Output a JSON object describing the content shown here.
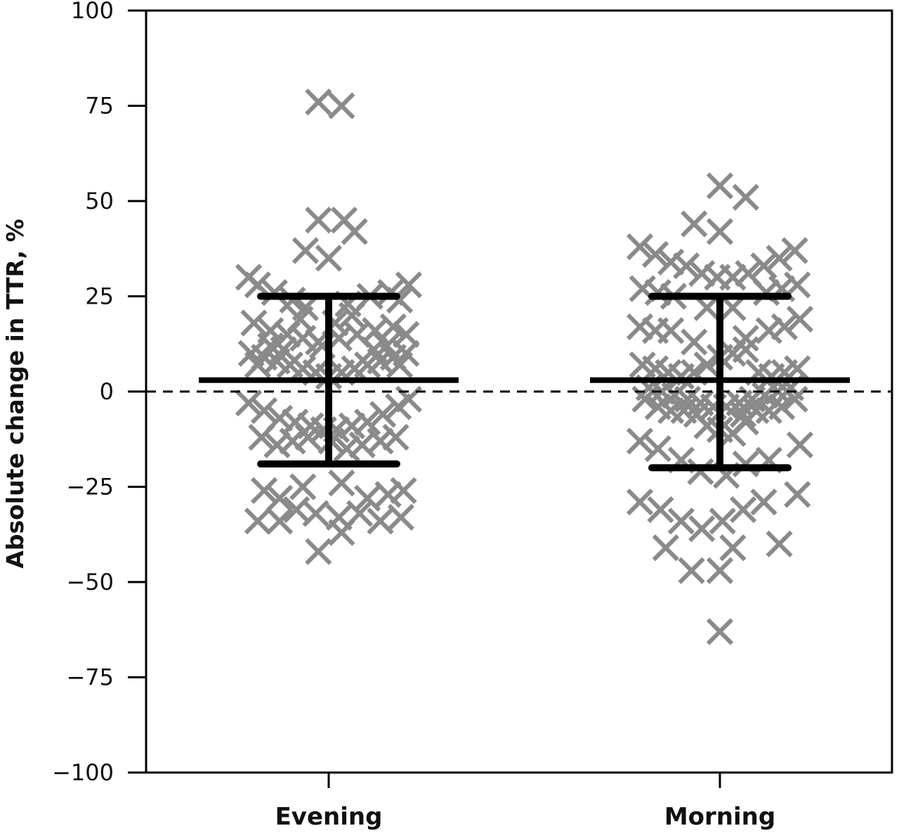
{
  "chart_data": {
    "type": "scatter",
    "subtype": "dot-plot-with-mean-and-sd",
    "title": "",
    "xlabel": "",
    "ylabel": "Absolute change in TTR, %",
    "ylim": [
      -100,
      100
    ],
    "yticks": [
      100,
      75,
      50,
      25,
      0,
      -25,
      -50,
      -75,
      -100
    ],
    "ytick_labels": [
      "100",
      "75",
      "50",
      "25",
      "0",
      "−25",
      "−50",
      "−75",
      "−100"
    ],
    "categories": [
      "Evening",
      "Morning"
    ],
    "reference_line": {
      "y": 0,
      "style": "dashed"
    },
    "grid": false,
    "legend": "none",
    "marker": "x",
    "colors": {
      "points": "#8a8a8a",
      "summary": "#000000",
      "axis": "#000000"
    },
    "groups": [
      {
        "name": "Evening",
        "mean": 3,
        "upper": 25,
        "lower": -19,
        "points": [
          [
            -0.62,
            30
          ],
          [
            -0.55,
            28
          ],
          [
            -0.42,
            26
          ],
          [
            -0.28,
            24
          ],
          [
            -0.18,
            22
          ],
          [
            0.15,
            23
          ],
          [
            0.32,
            25
          ],
          [
            0.48,
            26
          ],
          [
            0.62,
            28
          ],
          [
            0.55,
            24
          ],
          [
            -0.58,
            18
          ],
          [
            -0.45,
            16
          ],
          [
            -0.32,
            15
          ],
          [
            -0.2,
            14
          ],
          [
            -0.08,
            13
          ],
          [
            0.08,
            14
          ],
          [
            0.22,
            15
          ],
          [
            0.36,
            16
          ],
          [
            0.5,
            17
          ],
          [
            0.6,
            15
          ],
          [
            -0.6,
            10
          ],
          [
            -0.5,
            9
          ],
          [
            -0.4,
            8
          ],
          [
            -0.3,
            7
          ],
          [
            -0.2,
            6
          ],
          [
            -0.1,
            5
          ],
          [
            0.0,
            4
          ],
          [
            0.1,
            5
          ],
          [
            0.2,
            6
          ],
          [
            0.3,
            7
          ],
          [
            0.4,
            8
          ],
          [
            0.5,
            9
          ],
          [
            0.6,
            10
          ],
          [
            -0.55,
            7
          ],
          [
            -0.45,
            12
          ],
          [
            0.45,
            12
          ],
          [
            0.55,
            7
          ],
          [
            -0.35,
            11
          ],
          [
            0.35,
            11
          ],
          [
            -0.05,
            12
          ],
          [
            0.05,
            18
          ],
          [
            0.18,
            20
          ],
          [
            -0.22,
            19
          ],
          [
            -0.62,
            -3
          ],
          [
            -0.5,
            -5
          ],
          [
            -0.38,
            -7
          ],
          [
            -0.26,
            -8
          ],
          [
            -0.14,
            -9
          ],
          [
            -0.04,
            -10
          ],
          [
            0.06,
            -10
          ],
          [
            0.18,
            -9
          ],
          [
            0.3,
            -8
          ],
          [
            0.42,
            -6
          ],
          [
            0.54,
            -4
          ],
          [
            0.62,
            -2
          ],
          [
            -0.52,
            -12
          ],
          [
            -0.4,
            -14
          ],
          [
            -0.28,
            -13
          ],
          [
            -0.16,
            -12
          ],
          [
            0.02,
            -13
          ],
          [
            0.14,
            -15
          ],
          [
            0.26,
            -14
          ],
          [
            0.4,
            -13
          ],
          [
            0.52,
            -12
          ],
          [
            -0.5,
            -26
          ],
          [
            -0.38,
            -28
          ],
          [
            -0.2,
            -25
          ],
          [
            0.1,
            -24
          ],
          [
            0.3,
            -28
          ],
          [
            0.46,
            -27
          ],
          [
            0.58,
            -26
          ],
          [
            -0.55,
            -34
          ],
          [
            -0.38,
            -34
          ],
          [
            -0.25,
            -31
          ],
          [
            -0.1,
            -32
          ],
          [
            0.08,
            -33
          ],
          [
            0.24,
            -32
          ],
          [
            0.4,
            -34
          ],
          [
            0.56,
            -33
          ],
          [
            -0.08,
            -42
          ],
          [
            0.1,
            -37
          ],
          [
            -0.18,
            37
          ],
          [
            0.0,
            35
          ],
          [
            -0.08,
            45
          ],
          [
            0.12,
            45
          ],
          [
            0.2,
            42
          ],
          [
            -0.08,
            76
          ],
          [
            0.1,
            75
          ]
        ]
      },
      {
        "name": "Morning",
        "mean": 3,
        "upper": 25,
        "lower": -20,
        "points": [
          [
            -0.62,
            38
          ],
          [
            -0.5,
            36
          ],
          [
            -0.38,
            34
          ],
          [
            -0.26,
            33
          ],
          [
            -0.14,
            31
          ],
          [
            -0.02,
            30
          ],
          [
            0.1,
            30
          ],
          [
            0.22,
            31
          ],
          [
            0.34,
            33
          ],
          [
            0.46,
            35
          ],
          [
            0.58,
            37
          ],
          [
            -0.6,
            27
          ],
          [
            -0.48,
            26
          ],
          [
            -0.36,
            25
          ],
          [
            0.36,
            26
          ],
          [
            0.48,
            27
          ],
          [
            0.6,
            28
          ],
          [
            -0.1,
            22
          ],
          [
            0.1,
            22
          ],
          [
            -0.62,
            17
          ],
          [
            -0.5,
            16
          ],
          [
            -0.38,
            16
          ],
          [
            -0.2,
            13
          ],
          [
            0.2,
            14
          ],
          [
            0.38,
            16
          ],
          [
            0.5,
            17
          ],
          [
            0.62,
            19
          ],
          [
            -0.6,
            7
          ],
          [
            -0.5,
            6
          ],
          [
            -0.4,
            5
          ],
          [
            -0.3,
            4
          ],
          [
            -0.2,
            5
          ],
          [
            -0.1,
            7
          ],
          [
            0.0,
            9
          ],
          [
            0.1,
            10
          ],
          [
            0.2,
            11
          ],
          [
            0.3,
            5
          ],
          [
            0.4,
            4
          ],
          [
            0.5,
            5
          ],
          [
            0.6,
            6
          ],
          [
            -0.55,
            1
          ],
          [
            -0.45,
            0
          ],
          [
            -0.35,
            -1
          ],
          [
            -0.25,
            -2
          ],
          [
            -0.15,
            -3
          ],
          [
            -0.05,
            -4
          ],
          [
            0.05,
            -4
          ],
          [
            0.15,
            -3
          ],
          [
            0.25,
            -2
          ],
          [
            0.35,
            -1
          ],
          [
            0.45,
            0
          ],
          [
            0.55,
            1
          ],
          [
            -0.58,
            -2
          ],
          [
            -0.48,
            -4
          ],
          [
            -0.38,
            -5
          ],
          [
            -0.28,
            -5
          ],
          [
            -0.18,
            -6
          ],
          [
            0.18,
            -6
          ],
          [
            0.28,
            -5
          ],
          [
            0.38,
            -5
          ],
          [
            0.48,
            -4
          ],
          [
            0.58,
            -2
          ],
          [
            -0.1,
            -9
          ],
          [
            0.0,
            -10
          ],
          [
            0.1,
            -11
          ],
          [
            0.2,
            -8
          ],
          [
            -0.62,
            -13
          ],
          [
            -0.48,
            -15
          ],
          [
            -0.3,
            -18
          ],
          [
            -0.15,
            -21
          ],
          [
            0.05,
            -22
          ],
          [
            0.2,
            -19
          ],
          [
            0.38,
            -18
          ],
          [
            0.62,
            -14
          ],
          [
            -0.62,
            -29
          ],
          [
            -0.46,
            -31
          ],
          [
            -0.3,
            -34
          ],
          [
            -0.14,
            -36
          ],
          [
            0.02,
            -34
          ],
          [
            0.18,
            -31
          ],
          [
            0.34,
            -29
          ],
          [
            0.6,
            -27
          ],
          [
            -0.42,
            -41
          ],
          [
            -0.22,
            -47
          ],
          [
            0.0,
            -47
          ],
          [
            0.1,
            -41
          ],
          [
            0.46,
            -40
          ],
          [
            0.0,
            -63
          ],
          [
            -0.2,
            44
          ],
          [
            0.0,
            42
          ],
          [
            0.0,
            54
          ],
          [
            0.2,
            51
          ]
        ]
      }
    ]
  }
}
